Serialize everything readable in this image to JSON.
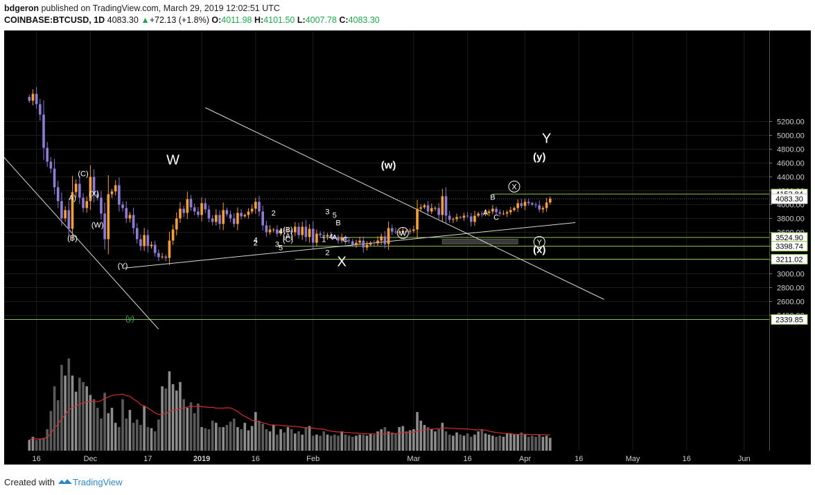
{
  "header": {
    "author": "bdgeron",
    "published": "published on TradingView.com, March 29, 2019 12:02:51 UTC",
    "symbol": "COINBASE:BTCUSD",
    "interval": "1D",
    "last": "4083.30",
    "change": "+72.13 (+1.8%)",
    "open_label": "O:",
    "open": "4011.98",
    "high_label": "H:",
    "high": "4101.50",
    "low_label": "L:",
    "low": "4007.78",
    "close_label": "C:",
    "close": "4083.30"
  },
  "footer": {
    "created_with": "Created with",
    "brand": "TradingView"
  },
  "colors": {
    "background": "#000000",
    "up_candle": "#f7a035",
    "down_candle": "#8f7ad6",
    "level_line": "#8bc34a",
    "trend_line": "#d9d9d9",
    "volume_ma": "#d32f2f",
    "price_badge": "#ffffff"
  },
  "chart_data": {
    "type": "candlestick",
    "title": "",
    "price_axis": {
      "ylim": [
        2200,
        5300
      ],
      "ticks": [
        2400,
        2600,
        2800,
        3000,
        3200,
        3400,
        3600,
        3800,
        4000,
        4200,
        4400,
        4600,
        4800,
        5000,
        5200
      ],
      "tick_labels": [
        "2400.00",
        "2600.00",
        "2800.00",
        "3000.00",
        "3200.00",
        "3400.00",
        "3600.00",
        "3800.00",
        "4000.00",
        "4200.00",
        "4400.00",
        "4600.00",
        "4800.00",
        "5000.00",
        "5200.00"
      ]
    },
    "time_axis": {
      "start": "2018-11-07",
      "end": "2019-06-08",
      "ticks": [
        {
          "date": "2018-11-16",
          "label": "16"
        },
        {
          "date": "2018-12-01",
          "label": "Dec"
        },
        {
          "date": "2018-12-17",
          "label": "17"
        },
        {
          "date": "2019-01-01",
          "label": "2019"
        },
        {
          "date": "2019-01-16",
          "label": "16"
        },
        {
          "date": "2019-02-01",
          "label": "Feb"
        },
        {
          "date": "2019-03-01",
          "label": "Mar"
        },
        {
          "date": "2019-03-16",
          "label": "16"
        },
        {
          "date": "2019-04-01",
          "label": "Apr"
        },
        {
          "date": "2019-04-16",
          "label": "16"
        },
        {
          "date": "2019-05-01",
          "label": "May"
        },
        {
          "date": "2019-05-16",
          "label": "16"
        },
        {
          "date": "2019-06-01",
          "label": "Jun"
        }
      ]
    },
    "close_series": {
      "start": "2018-11-14",
      "values": [
        5500,
        5600,
        5450,
        5300,
        4820,
        4620,
        4520,
        4250,
        4050,
        3800,
        3920,
        3650,
        4180,
        4300,
        4100,
        3950,
        4050,
        4400,
        4150,
        4100,
        3870,
        3500,
        4150,
        4190,
        4280,
        4000,
        3950,
        3800,
        3850,
        3660,
        3500,
        3400,
        3560,
        3400,
        3420,
        3300,
        3240,
        3250,
        3230,
        3480,
        3640,
        3800,
        3940,
        3880,
        4080,
        3960,
        3900,
        3850,
        4020,
        3930,
        3800,
        3750,
        3850,
        3720,
        3920,
        3860,
        3800,
        3720,
        3880,
        3830,
        3850,
        3900,
        3940,
        4040,
        3900,
        3700,
        3600,
        3640,
        3640,
        3580,
        3630,
        3620,
        3620,
        3600,
        3680,
        3560,
        3680,
        3530,
        3650,
        3450,
        3580,
        3560,
        3540,
        3560,
        3540,
        3520,
        3480,
        3520,
        3480,
        3470,
        3420,
        3450,
        3480,
        3380,
        3420,
        3450,
        3440,
        3480,
        3540,
        3430,
        3660,
        3610,
        3600,
        3600,
        3620,
        3610,
        3620,
        3640,
        3940,
        3960,
        3990,
        3900,
        3950,
        3950,
        3850,
        4120,
        3840,
        3780,
        3790,
        3820,
        3810,
        3840,
        3830,
        3750,
        3840,
        3870,
        3860,
        3880,
        3900,
        3940,
        3890,
        3870,
        3870,
        3890,
        3920,
        3950,
        4020,
        3980,
        4040,
        4020,
        4000,
        3990,
        3930,
        3950,
        4030,
        4083.3
      ]
    },
    "volume": {
      "ylim": [
        0,
        100
      ],
      "values": [
        10,
        13,
        10,
        11,
        12,
        20,
        37,
        60,
        47,
        80,
        70,
        86,
        70,
        55,
        68,
        64,
        60,
        52,
        48,
        40,
        30,
        54,
        35,
        40,
        26,
        22,
        48,
        30,
        38,
        26,
        29,
        24,
        42,
        22,
        21,
        18,
        29,
        60,
        58,
        74,
        62,
        56,
        64,
        48,
        40,
        45,
        35,
        44,
        22,
        21,
        20,
        28,
        26,
        22,
        22,
        24,
        27,
        30,
        22,
        20,
        26,
        19,
        23,
        36,
        28,
        25,
        20,
        18,
        24,
        15,
        20,
        17,
        22,
        20,
        16,
        18,
        15,
        22,
        23,
        14,
        15,
        14,
        18,
        15,
        14,
        15,
        14,
        18,
        15,
        14,
        13,
        14,
        15,
        15,
        14,
        16,
        15,
        18,
        20,
        22,
        18,
        17,
        16,
        22,
        23,
        18,
        19,
        20,
        36,
        28,
        24,
        22,
        20,
        18,
        20,
        26,
        18,
        15,
        14,
        17,
        15,
        14,
        16,
        13,
        15,
        18,
        20,
        16,
        15,
        14,
        13,
        14,
        13,
        16,
        16,
        15,
        15,
        17,
        15,
        13,
        14,
        13,
        15,
        13,
        14,
        12
      ],
      "ma_label": "20-period moving average of volume"
    },
    "levels": [
      {
        "price": 4152.84,
        "label": "4152.84",
        "from": "2019-03-23"
      },
      {
        "price": 3524.9,
        "label": "3524.90",
        "from": "2019-02-03"
      },
      {
        "price": 3398.74,
        "label": "3398.74",
        "from": "2019-01-22"
      },
      {
        "price": 3211.02,
        "label": "3211.02",
        "from": "2019-01-27"
      },
      {
        "price": 2339.85,
        "label": "2339.85",
        "from": "2018-11-07"
      }
    ],
    "last_price_label": "4083.30",
    "trendlines": [
      {
        "from": {
          "date": "2018-11-07",
          "price": 4680
        },
        "to": {
          "date": "2018-12-20",
          "price": 2200
        }
      },
      {
        "from": {
          "date": "2019-01-02",
          "price": 5400
        },
        "to": {
          "date": "2019-04-23",
          "price": 2630
        }
      },
      {
        "from": {
          "date": "2018-12-10",
          "price": 3080
        },
        "to": {
          "date": "2019-04-15",
          "price": 3740
        }
      }
    ],
    "zone": {
      "from": "2019-03-09",
      "to": "2019-03-30",
      "price_high": 3500,
      "price_low": 3430
    },
    "annotations": [
      {
        "text": "W",
        "date": "2018-12-24",
        "price": 4580,
        "size": "large"
      },
      {
        "text": "X",
        "date": "2019-02-09",
        "price": 3110,
        "size": "large"
      },
      {
        "text": "Y",
        "date": "2019-04-07",
        "price": 4890,
        "size": "large"
      },
      {
        "text": "(w)",
        "date": "2019-02-22",
        "price": 4520,
        "size": "medium"
      },
      {
        "text": "(x)",
        "date": "2019-04-05",
        "price": 3300,
        "size": "medium"
      },
      {
        "text": "(y)",
        "date": "2019-04-05",
        "price": 4640,
        "size": "medium"
      },
      {
        "text": "X",
        "date": "2019-03-29",
        "price": 4220,
        "size": "circle"
      },
      {
        "text": "W",
        "date": "2019-02-26",
        "price": 3550,
        "size": "circle"
      },
      {
        "text": "Y",
        "date": "2019-04-05",
        "price": 3420,
        "size": "circle"
      },
      {
        "text": "(C)",
        "date": "2018-11-29",
        "price": 4410,
        "size": "small"
      },
      {
        "text": "(X)",
        "date": "2018-12-02",
        "price": 4120,
        "size": "small"
      },
      {
        "text": "(W)",
        "date": "2018-12-03",
        "price": 3670,
        "size": "small"
      },
      {
        "text": "(B)",
        "date": "2018-11-26",
        "price": 3480,
        "size": "small"
      },
      {
        "text": "(Y)",
        "date": "2018-12-10",
        "price": 3080,
        "size": "small"
      },
      {
        "text": "A)",
        "date": "2018-11-26",
        "price": 4060,
        "size": "small"
      },
      {
        "text": "(y)",
        "date": "2018-12-12",
        "price": 2320,
        "size": "small-green"
      },
      {
        "text": "2",
        "date": "2019-01-21",
        "price": 3840,
        "size": "small"
      },
      {
        "text": "4",
        "date": "2019-01-23",
        "price": 3580,
        "size": "small"
      },
      {
        "text": "(B)",
        "date": "2019-01-25",
        "price": 3600,
        "size": "small"
      },
      {
        "text": "(A)",
        "date": "2019-01-25",
        "price": 3510,
        "size": "small"
      },
      {
        "text": "(C)",
        "date": "2019-01-25",
        "price": 3460,
        "size": "small"
      },
      {
        "text": "4",
        "date": "2019-01-16",
        "price": 3450,
        "size": "small"
      },
      {
        "text": "2",
        "date": "2019-01-16",
        "price": 3410,
        "size": "small"
      },
      {
        "text": "3",
        "date": "2019-01-22",
        "price": 3390,
        "size": "small"
      },
      {
        "text": "5",
        "date": "2019-01-23",
        "price": 3340,
        "size": "small"
      },
      {
        "text": "3",
        "date": "2019-02-05",
        "price": 3860,
        "size": "small"
      },
      {
        "text": "5",
        "date": "2019-02-07",
        "price": 3810,
        "size": "small"
      },
      {
        "text": "B",
        "date": "2019-02-08",
        "price": 3700,
        "size": "small"
      },
      {
        "text": "1",
        "date": "2019-02-04",
        "price": 3460,
        "size": "small"
      },
      {
        "text": "4",
        "date": "2019-02-06",
        "price": 3500,
        "size": "small"
      },
      {
        "text": "A",
        "date": "2019-02-07",
        "price": 3490,
        "size": "small"
      },
      {
        "text": "C",
        "date": "2019-02-10",
        "price": 3460,
        "size": "small"
      },
      {
        "text": "2",
        "date": "2019-02-05",
        "price": 3270,
        "size": "small"
      },
      {
        "text": "B",
        "date": "2019-03-23",
        "price": 4070,
        "size": "small"
      },
      {
        "text": "A",
        "date": "2019-03-21",
        "price": 3850,
        "size": "small"
      },
      {
        "text": "C",
        "date": "2019-03-24",
        "price": 3780,
        "size": "small"
      }
    ]
  }
}
